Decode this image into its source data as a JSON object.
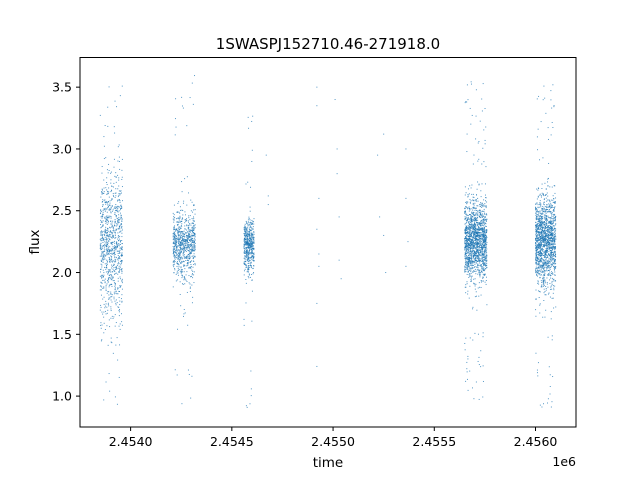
{
  "chart_data": {
    "type": "scatter",
    "title": "1SWASPJ152710.46-271918.0",
    "xlabel": "time",
    "ylabel": "flux",
    "x_offset_label": "1e6",
    "xlim": [
      2.45375,
      2.4562
    ],
    "ylim": [
      0.75,
      3.74
    ],
    "x_ticks": [
      2.454,
      2.4545,
      2.455,
      2.4555,
      2.456
    ],
    "x_tick_labels": [
      "2.4540",
      "2.4545",
      "2.4550",
      "2.4555",
      "2.4560"
    ],
    "y_ticks": [
      1.0,
      1.5,
      2.0,
      2.5,
      3.0,
      3.5
    ],
    "y_tick_labels": [
      "1.0",
      "1.5",
      "2.0",
      "2.5",
      "3.0",
      "3.5"
    ],
    "grid": false,
    "marker_color": "#1f77b4",
    "series": [
      {
        "values_note": "",
        "clusters": [
          {
            "x_range": [
              2.45385,
              2.45396
            ],
            "center": 2.2,
            "spread": 0.3,
            "count": 900,
            "tail_min": 0.87,
            "tail_max": 3.62
          },
          {
            "x_range": [
              2.45421,
              2.45432
            ],
            "center": 2.22,
            "spread": 0.13,
            "count": 800,
            "tail_min": 0.88,
            "tail_max": 3.6
          },
          {
            "x_range": [
              2.45456,
              2.45461
            ],
            "center": 2.22,
            "spread": 0.11,
            "count": 500,
            "tail_min": 0.88,
            "tail_max": 3.32
          },
          {
            "x_range": [
              2.45565,
              2.45576
            ],
            "center": 2.25,
            "spread": 0.16,
            "count": 1600,
            "tail_min": 0.92,
            "tail_max": 3.55
          },
          {
            "x_range": [
              2.456,
              2.4561
            ],
            "center": 2.25,
            "spread": 0.18,
            "count": 1500,
            "tail_min": 0.88,
            "tail_max": 3.58
          }
        ],
        "sparse_points": [
          [
            2.45467,
            2.95
          ],
          [
            2.45468,
            2.55
          ],
          [
            2.45468,
            2.62
          ],
          [
            2.45492,
            3.5
          ],
          [
            2.45492,
            3.35
          ],
          [
            2.45492,
            2.35
          ],
          [
            2.45492,
            1.75
          ],
          [
            2.45492,
            1.24
          ],
          [
            2.45493,
            2.6
          ],
          [
            2.45493,
            2.05
          ],
          [
            2.45493,
            2.15
          ],
          [
            2.45501,
            3.4
          ],
          [
            2.45502,
            3.0
          ],
          [
            2.45502,
            2.8
          ],
          [
            2.45503,
            2.45
          ],
          [
            2.45503,
            2.1
          ],
          [
            2.45504,
            1.95
          ],
          [
            2.45522,
            2.95
          ],
          [
            2.45523,
            2.45
          ],
          [
            2.45525,
            3.12
          ],
          [
            2.45525,
            2.3
          ],
          [
            2.45526,
            2.0
          ],
          [
            2.45536,
            3.0
          ],
          [
            2.45536,
            2.6
          ],
          [
            2.45536,
            2.05
          ],
          [
            2.45537,
            2.25
          ]
        ]
      }
    ]
  }
}
